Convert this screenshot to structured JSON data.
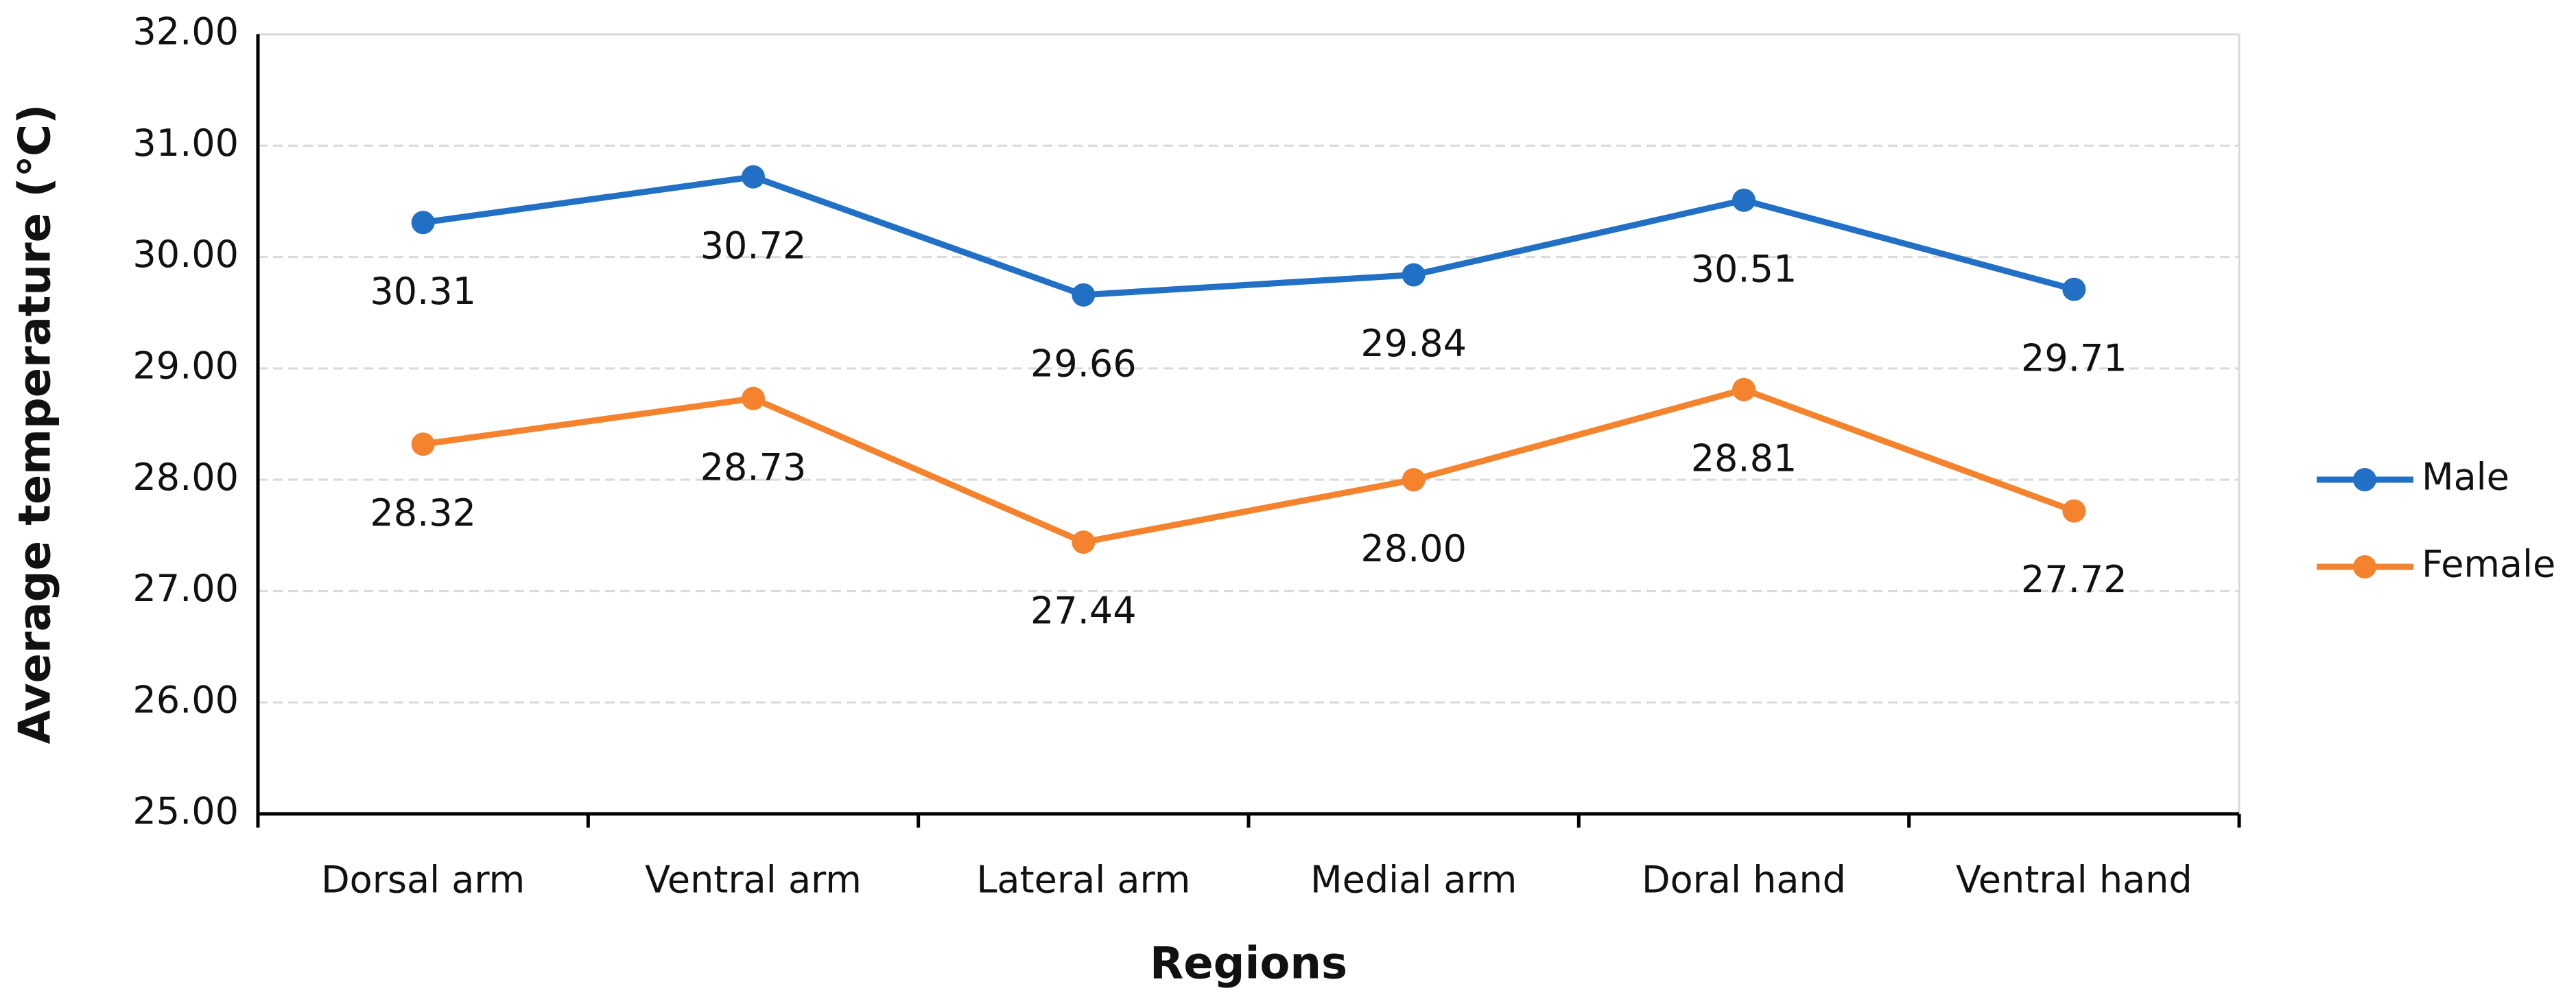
{
  "chart_data": {
    "type": "line",
    "x_label": "Regions",
    "y_label": "Average temperature (℃)",
    "categories": [
      "Dorsal arm",
      "Ventral arm",
      "Lateral arm",
      "Medial arm",
      "Doral hand",
      "Ventral hand"
    ],
    "series": [
      {
        "name": "Male",
        "color": "#2170c6",
        "values": [
          30.31,
          30.72,
          29.66,
          29.84,
          30.51,
          29.71
        ],
        "value_labels": [
          "30.31",
          "30.72",
          "29.66",
          "29.84",
          "30.51",
          "29.71"
        ]
      },
      {
        "name": "Female",
        "color": "#f5832e",
        "values": [
          28.32,
          28.73,
          27.44,
          28.0,
          28.81,
          27.72
        ],
        "value_labels": [
          "28.32",
          "28.73",
          "27.44",
          "28.00",
          "28.81",
          "27.72"
        ]
      }
    ],
    "ylim": [
      25,
      32
    ],
    "yticks": [
      {
        "value": 25,
        "label": "25.00"
      },
      {
        "value": 26,
        "label": "26.00"
      },
      {
        "value": 27,
        "label": "27.00"
      },
      {
        "value": 28,
        "label": "28.00"
      },
      {
        "value": 29,
        "label": "29.00"
      },
      {
        "value": 30,
        "label": "30.00"
      },
      {
        "value": 31,
        "label": "31.00"
      },
      {
        "value": 32,
        "label": "32.00"
      }
    ],
    "grid": true,
    "legend": "right"
  }
}
